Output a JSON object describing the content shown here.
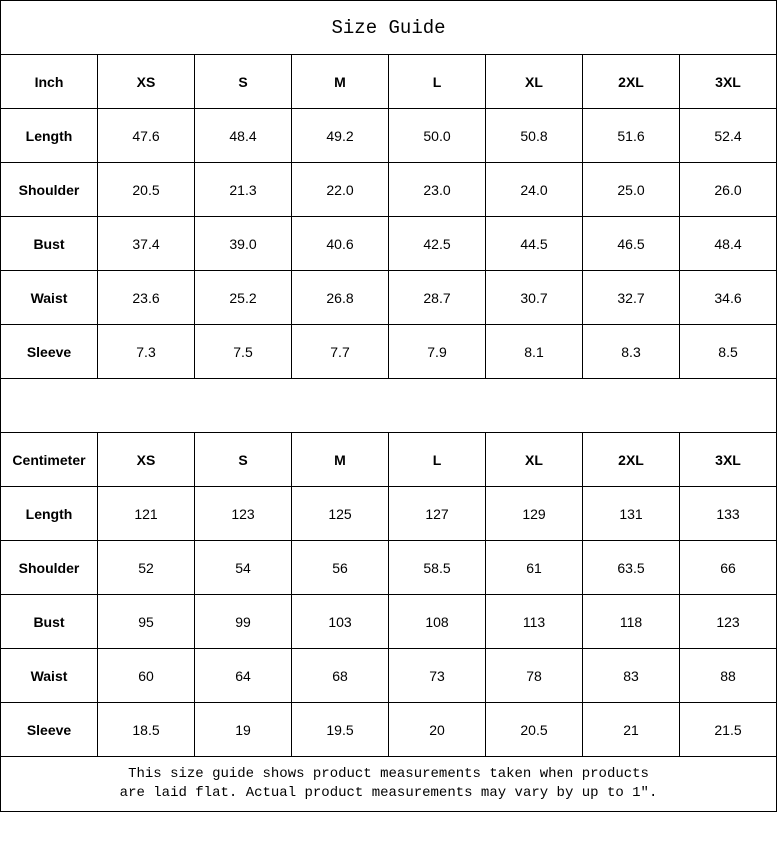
{
  "title": "Size Guide",
  "sizes": [
    "XS",
    "S",
    "M",
    "L",
    "XL",
    "2XL",
    "3XL"
  ],
  "inch": {
    "label": "Inch",
    "rows": [
      {
        "label": "Length",
        "values": [
          "47.6",
          "48.4",
          "49.2",
          "50.0",
          "50.8",
          "51.6",
          "52.4"
        ]
      },
      {
        "label": "Shoulder",
        "values": [
          "20.5",
          "21.3",
          "22.0",
          "23.0",
          "24.0",
          "25.0",
          "26.0"
        ]
      },
      {
        "label": "Bust",
        "values": [
          "37.4",
          "39.0",
          "40.6",
          "42.5",
          "44.5",
          "46.5",
          "48.4"
        ]
      },
      {
        "label": "Waist",
        "values": [
          "23.6",
          "25.2",
          "26.8",
          "28.7",
          "30.7",
          "32.7",
          "34.6"
        ]
      },
      {
        "label": "Sleeve",
        "values": [
          "7.3",
          "7.5",
          "7.7",
          "7.9",
          "8.1",
          "8.3",
          "8.5"
        ]
      }
    ]
  },
  "cm": {
    "label": "Centimeter",
    "rows": [
      {
        "label": "Length",
        "values": [
          "121",
          "123",
          "125",
          "127",
          "129",
          "131",
          "133"
        ]
      },
      {
        "label": "Shoulder",
        "values": [
          "52",
          "54",
          "56",
          "58.5",
          "61",
          "63.5",
          "66"
        ]
      },
      {
        "label": "Bust",
        "values": [
          "95",
          "99",
          "103",
          "108",
          "113",
          "118",
          "123"
        ]
      },
      {
        "label": "Waist",
        "values": [
          "60",
          "64",
          "68",
          "73",
          "78",
          "83",
          "88"
        ]
      },
      {
        "label": "Sleeve",
        "values": [
          "18.5",
          "19",
          "19.5",
          "20",
          "20.5",
          "21",
          "21.5"
        ]
      }
    ]
  },
  "note": {
    "line1": "This size guide shows product measurements taken when products",
    "line2": "are laid flat. Actual product measurements may vary by up to 1″."
  }
}
